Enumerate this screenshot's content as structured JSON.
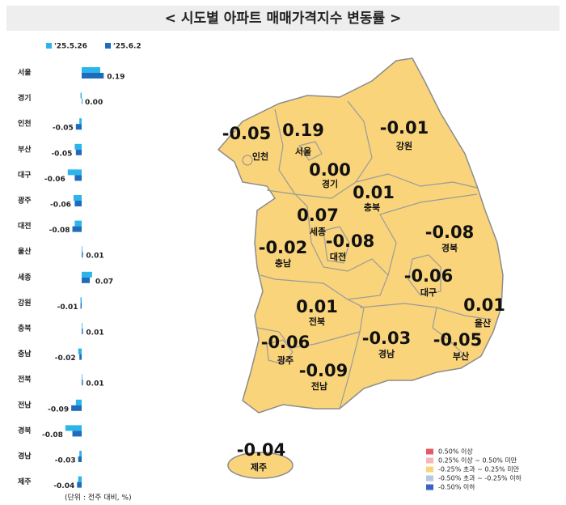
{
  "chart_data": {
    "type": "bar",
    "orientation": "horizontal",
    "title": "< 시도별 아파트 매매가격지수 변동률 >",
    "unit_note": "(단위 : 전주 대비, %)",
    "categories": [
      "서울",
      "경기",
      "인천",
      "부산",
      "대구",
      "광주",
      "대전",
      "울산",
      "세종",
      "강원",
      "충북",
      "충남",
      "전북",
      "전남",
      "경북",
      "경남",
      "제주"
    ],
    "series": [
      {
        "name": "'25.5.26",
        "color": "#2bb5ea",
        "values": [
          0.16,
          -0.01,
          -0.02,
          -0.06,
          -0.12,
          -0.07,
          -0.06,
          0.0,
          0.09,
          -0.01,
          0.0,
          -0.03,
          0.0,
          -0.05,
          -0.14,
          -0.02,
          -0.03
        ]
      },
      {
        "name": "'25.6.2",
        "color": "#1f6cbc",
        "values": [
          0.19,
          0.0,
          -0.05,
          -0.05,
          -0.06,
          -0.06,
          -0.08,
          0.01,
          0.07,
          -0.01,
          0.01,
          -0.02,
          0.01,
          -0.09,
          -0.08,
          -0.03,
          -0.04
        ],
        "value_labels": [
          "0.19",
          "0.00",
          "-0.05",
          "-0.05",
          "-0.06",
          "-0.06",
          "-0.08",
          "0.01",
          "0.07",
          "-0.01",
          "0.01",
          "-0.02",
          "0.01",
          "-0.09",
          "-0.08",
          "-0.03",
          "-0.04"
        ]
      }
    ],
    "xlim": [
      -0.3,
      0.3
    ],
    "map_legend": [
      {
        "label": "0.50% 이상",
        "color": "#e05c63"
      },
      {
        "label": "0.25% 이상 ~ 0.50% 미만",
        "color": "#f4b6b8"
      },
      {
        "label": "-0.25% 초과 ~ 0.25% 미만",
        "color": "#f9d47a"
      },
      {
        "label": "-0.50% 초과 ~ -0.25% 이하",
        "color": "#b6c9e4"
      },
      {
        "label": "-0.50% 이하",
        "color": "#3a63c4"
      }
    ]
  }
}
